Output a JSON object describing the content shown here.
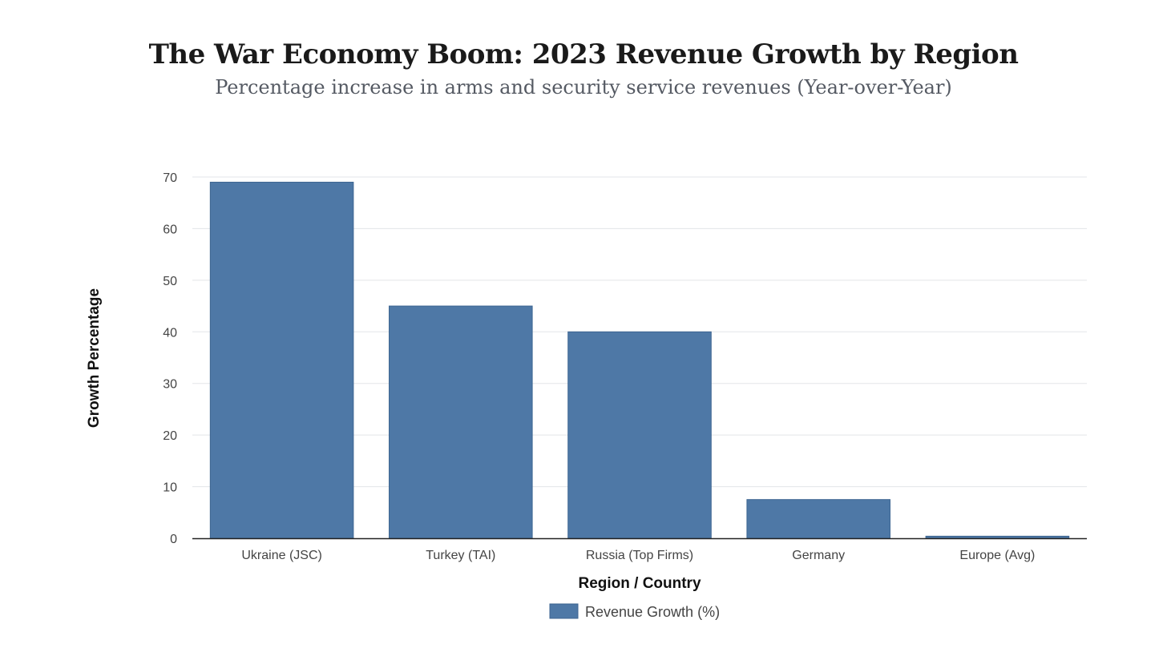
{
  "chart_data": {
    "type": "bar",
    "title": "The War Economy Boom: 2023 Revenue Growth by Region",
    "subtitle": "Percentage increase in arms and security service revenues (Year-over-Year)",
    "xlabel": "Region / Country",
    "ylabel": "Growth Percentage",
    "categories": [
      "Ukraine (JSC)",
      "Turkey (TAI)",
      "Russia (Top Firms)",
      "Germany",
      "Europe (Avg)"
    ],
    "series": [
      {
        "name": "Revenue Growth (%)",
        "values": [
          69,
          45,
          40,
          7.5,
          0.4
        ],
        "color": "#4e78a6"
      }
    ],
    "ylim": [
      0,
      70
    ],
    "yticks": [
      0,
      10,
      20,
      30,
      40,
      50,
      60,
      70
    ],
    "grid": true,
    "legend_position": "bottom-center"
  }
}
